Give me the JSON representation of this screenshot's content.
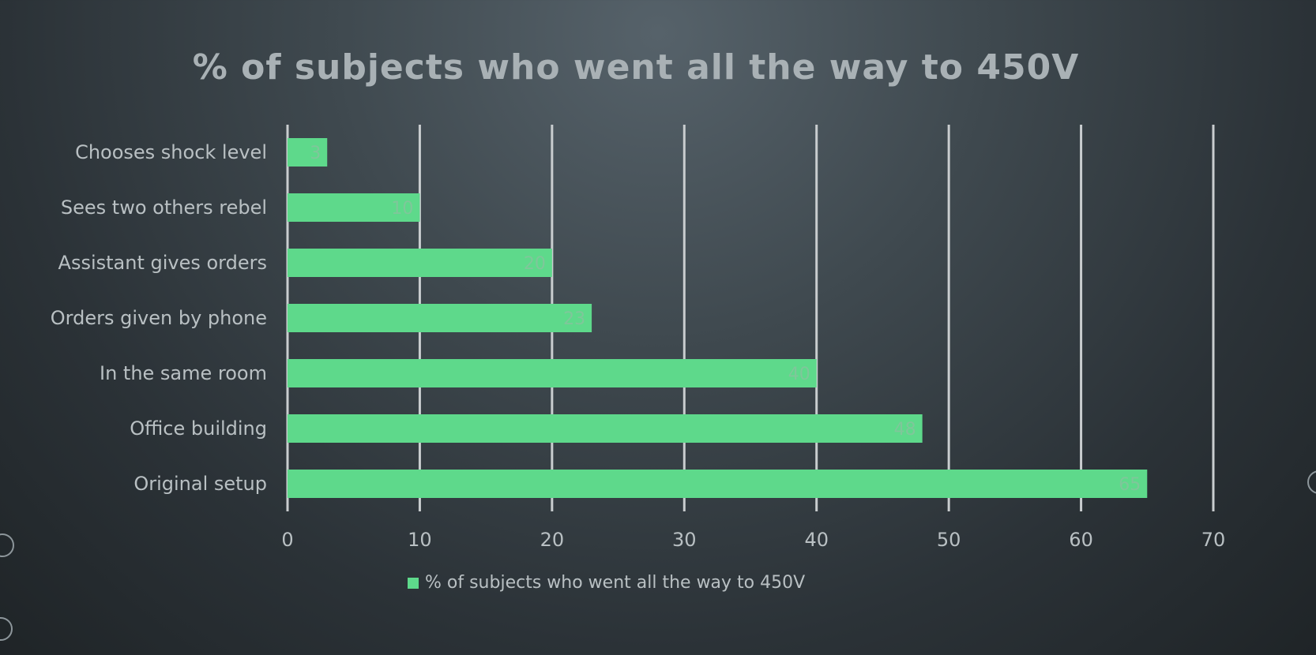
{
  "chart_data": {
    "type": "bar",
    "orientation": "horizontal",
    "title": "% of subjects who went all the way to 450V",
    "categories": [
      "Chooses shock level",
      "Sees two others rebel",
      "Assistant gives orders",
      "Orders given by phone",
      "In the same room",
      "Office building",
      "Original setup"
    ],
    "series": [
      {
        "name": "% of subjects who went all the way to 450V",
        "values": [
          3,
          10,
          20,
          23,
          40,
          48,
          65
        ],
        "color": "#5ed98b"
      }
    ],
    "data_labels": [
      "3",
      "10",
      "20",
      "23",
      "40",
      "48",
      "65"
    ],
    "xlim": [
      0,
      70
    ],
    "x_ticks": [
      0,
      10,
      20,
      30,
      40,
      50,
      60,
      70
    ],
    "x_tick_labels": [
      "0",
      "10",
      "20",
      "30",
      "40",
      "50",
      "60",
      "70"
    ],
    "grid": true,
    "legend_position": "bottom"
  },
  "colors": {
    "bar": "#5ed98b",
    "gridline": "#c9cdcf",
    "text": "#b9c0c3",
    "title": "#a9b1b5",
    "data_label": "#7fc79a"
  }
}
